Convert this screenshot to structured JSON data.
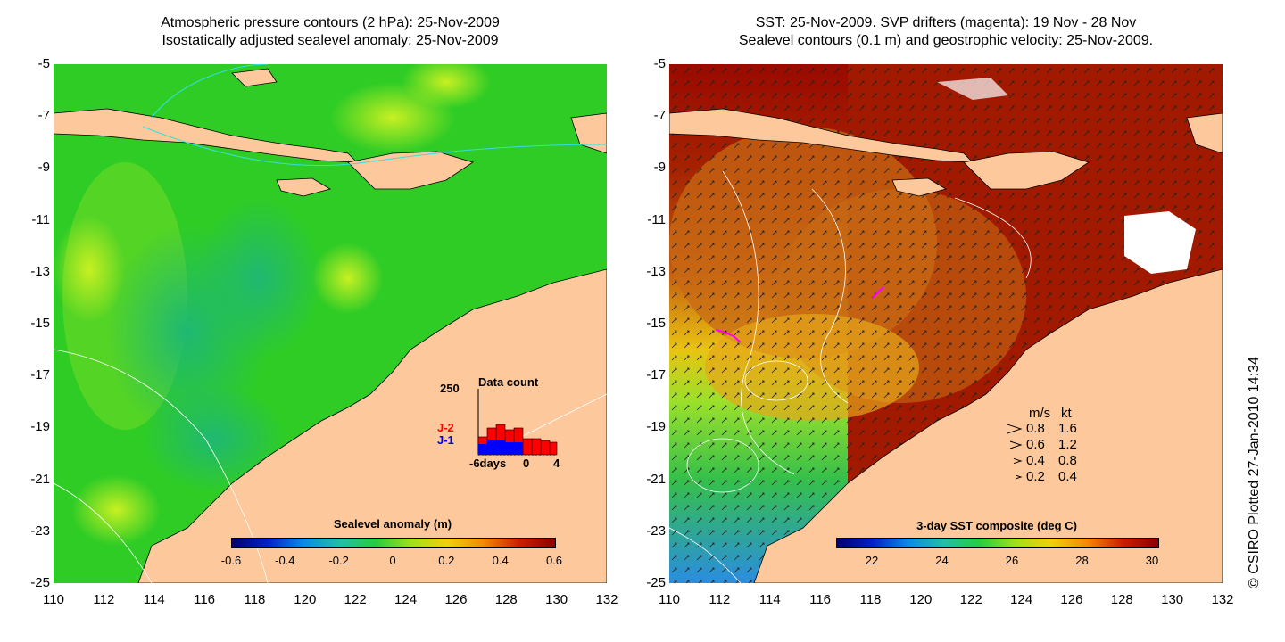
{
  "left_panel": {
    "title_line1": "Atmospheric pressure contours (2 hPa): 25-Nov-2009",
    "title_line2": "Isostatically adjusted sealevel anomaly: 25-Nov-2009",
    "colorbar": {
      "title": "Sealevel anomaly (m)",
      "labels": [
        "-0.6",
        "-0.4",
        "-0.2",
        "0",
        "0.2",
        "0.4",
        "0.6"
      ]
    },
    "data_count": {
      "title": "Data count",
      "y_max_label": "250",
      "x_labels": [
        "-6days",
        "0",
        "4"
      ],
      "series": [
        {
          "name": "J-2",
          "color": "#ff0000"
        },
        {
          "name": "J-1",
          "color": "#0000ff"
        }
      ]
    }
  },
  "right_panel": {
    "title_line1": "SST: 25-Nov-2009. SVP drifters (magenta): 19 Nov - 28 Nov",
    "title_line2": "Sealevel contours (0.1 m) and geostrophic velocity: 25-Nov-2009.",
    "colorbar": {
      "title": "3-day SST composite (deg C)",
      "labels": [
        "22",
        "24",
        "26",
        "28",
        "30"
      ]
    },
    "velocity_legend": {
      "header_ms": "m/s",
      "header_kt": "kt",
      "rows": [
        {
          "ms": "0.8",
          "kt": "1.6"
        },
        {
          "ms": "0.6",
          "kt": "1.2"
        },
        {
          "ms": "0.4",
          "kt": "0.8"
        },
        {
          "ms": "0.2",
          "kt": "0.4"
        }
      ]
    }
  },
  "axes": {
    "y_labels": [
      "-5",
      "-7",
      "-9",
      "-11",
      "-13",
      "-15",
      "-17",
      "-19",
      "-21",
      "-23",
      "-25"
    ],
    "x_labels": [
      "110",
      "112",
      "114",
      "116",
      "118",
      "120",
      "122",
      "124",
      "126",
      "128",
      "130",
      "132"
    ]
  },
  "copyright": "© CSIRO Plotted 27-Jan-2010 14:34",
  "colors": {
    "land": "#fdc89b",
    "sla_green": "#22cc22",
    "sst_dark_red": "#9a0a00",
    "sst_orange": "#cc6a10"
  }
}
